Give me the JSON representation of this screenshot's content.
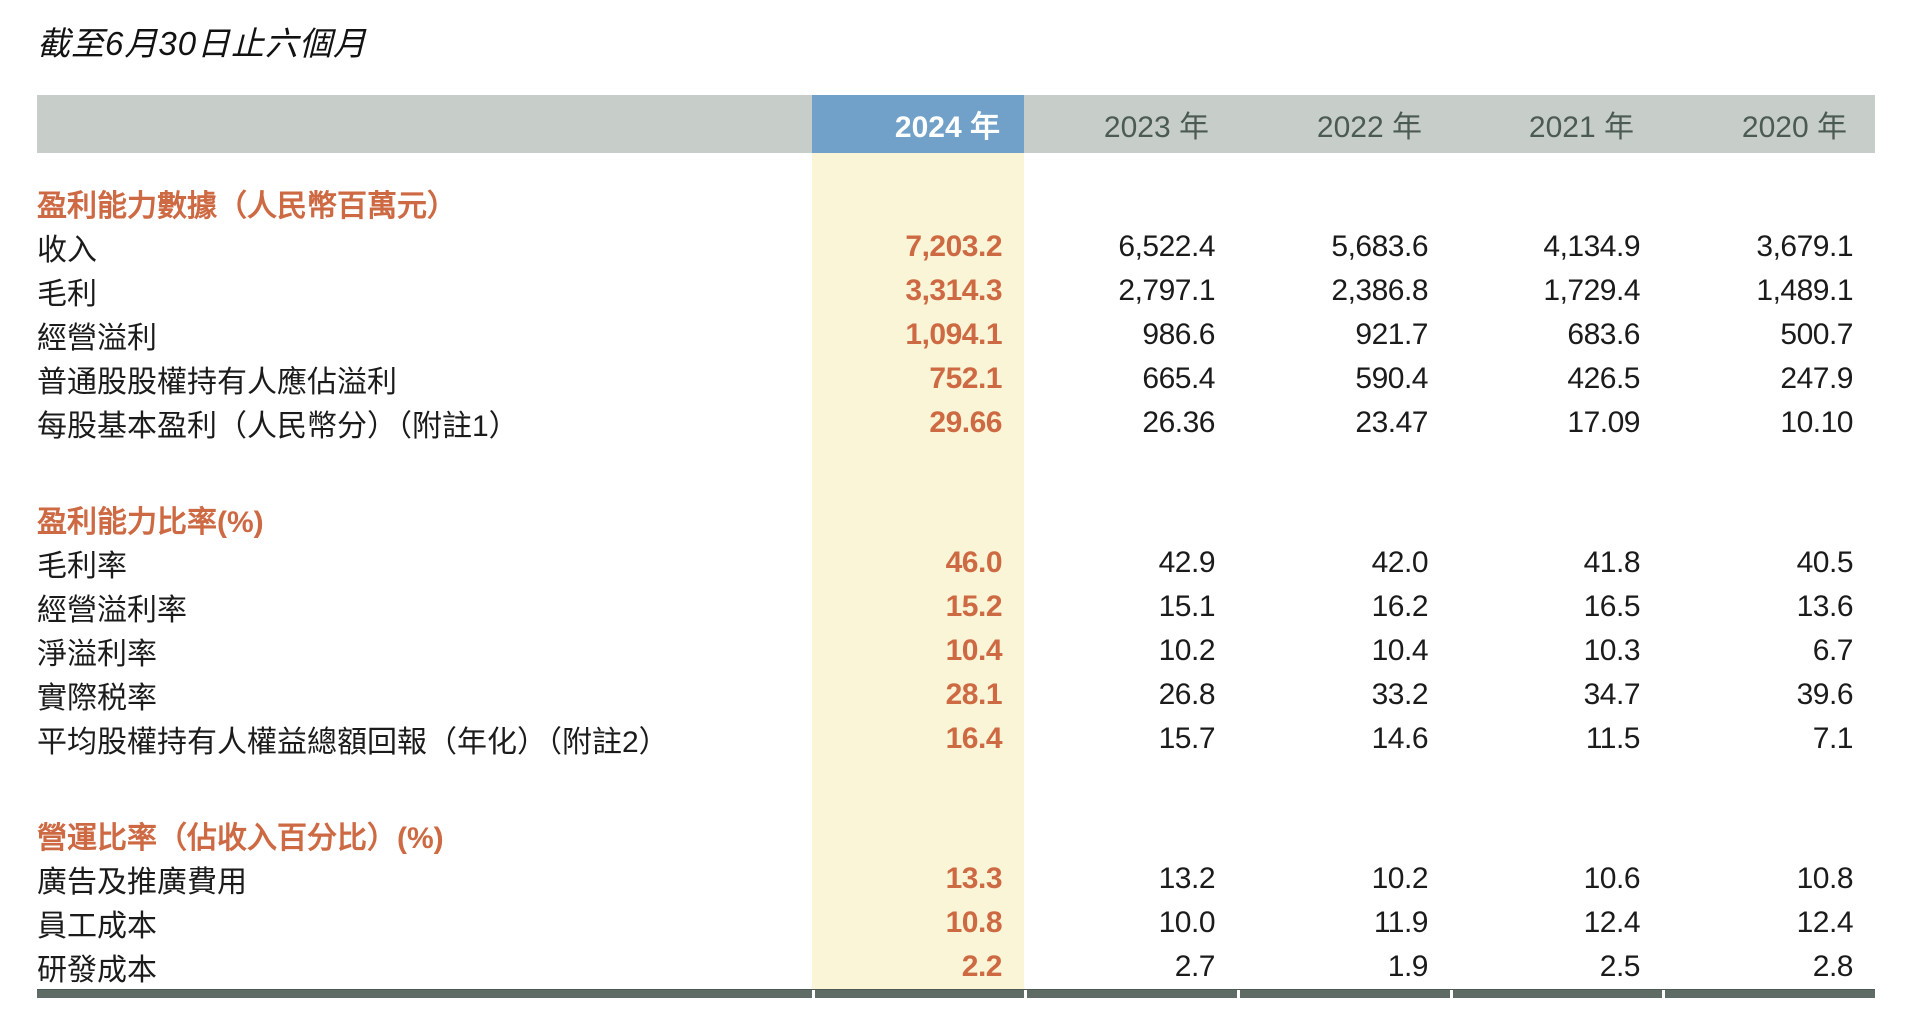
{
  "title": "截至6月30日止六個月",
  "table": {
    "year_columns": [
      "2024 年",
      "2023 年",
      "2022 年",
      "2021 年",
      "2020 年"
    ],
    "highlight_year_index": 0,
    "sections": [
      {
        "header": "盈利能力數據（人民幣百萬元）",
        "rows": [
          {
            "label": "收入",
            "values": [
              "7,203.2",
              "6,522.4",
              "5,683.6",
              "4,134.9",
              "3,679.1"
            ]
          },
          {
            "label": "毛利",
            "values": [
              "3,314.3",
              "2,797.1",
              "2,386.8",
              "1,729.4",
              "1,489.1"
            ]
          },
          {
            "label": "經營溢利",
            "values": [
              "1,094.1",
              "986.6",
              "921.7",
              "683.6",
              "500.7"
            ]
          },
          {
            "label": "普通股股權持有人應佔溢利",
            "values": [
              "752.1",
              "665.4",
              "590.4",
              "426.5",
              "247.9"
            ]
          },
          {
            "label": "每股基本盈利（人民幣分）（附註1）",
            "values": [
              "29.66",
              "26.36",
              "23.47",
              "17.09",
              "10.10"
            ]
          }
        ]
      },
      {
        "header": "盈利能力比率(%)",
        "rows": [
          {
            "label": "毛利率",
            "values": [
              "46.0",
              "42.9",
              "42.0",
              "41.8",
              "40.5"
            ]
          },
          {
            "label": "經營溢利率",
            "values": [
              "15.2",
              "15.1",
              "16.2",
              "16.5",
              "13.6"
            ]
          },
          {
            "label": "淨溢利率",
            "values": [
              "10.4",
              "10.2",
              "10.4",
              "10.3",
              "6.7"
            ]
          },
          {
            "label": "實際税率",
            "values": [
              "28.1",
              "26.8",
              "33.2",
              "34.7",
              "39.6"
            ]
          },
          {
            "label": "平均股權持有人權益總額回報（年化）（附註2）",
            "values": [
              "16.4",
              "15.7",
              "14.6",
              "11.5",
              "7.1"
            ]
          }
        ]
      },
      {
        "header": "營運比率（佔收入百分比）(%)",
        "rows": [
          {
            "label": "廣告及推廣費用",
            "values": [
              "13.3",
              "13.2",
              "10.2",
              "10.6",
              "10.8"
            ]
          },
          {
            "label": "員工成本",
            "values": [
              "10.8",
              "10.0",
              "11.9",
              "12.4",
              "12.4"
            ]
          },
          {
            "label": "研發成本",
            "values": [
              "2.2",
              "2.7",
              "1.9",
              "2.5",
              "2.8"
            ]
          }
        ]
      }
    ]
  },
  "colors": {
    "header_bar": "#c7cec9",
    "highlight_header": "#71a1c9",
    "highlight_column": "#faf5d6",
    "accent_orange": "#cd6a43",
    "year_text": "#4c5a54",
    "body_text": "#1b1b1b",
    "bottom_rule": "#5e6c65"
  }
}
